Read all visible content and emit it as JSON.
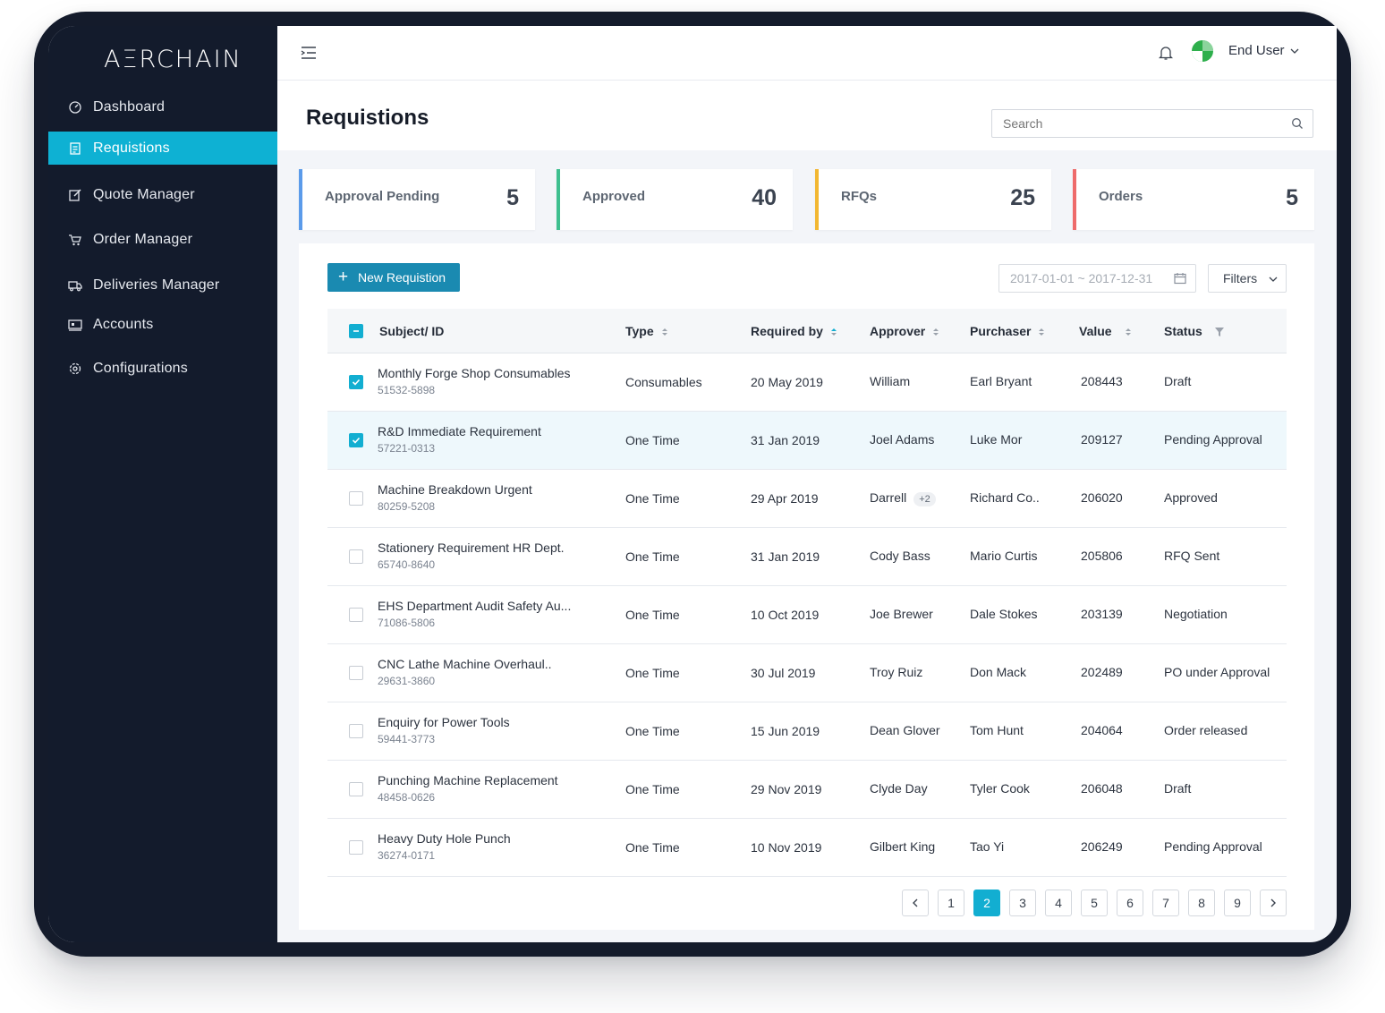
{
  "app": {
    "logo": "AΞRCHAIN"
  },
  "sidebar": {
    "items": [
      {
        "label": "Dashboard",
        "icon": "gauge-icon"
      },
      {
        "label": "Requistions",
        "icon": "document-icon",
        "active": true
      },
      {
        "label": "Quote Manager",
        "icon": "edit-icon"
      },
      {
        "label": "Order Manager",
        "icon": "cart-icon"
      },
      {
        "label": "Deliveries Manager",
        "icon": "truck-icon"
      },
      {
        "label": "Accounts",
        "icon": "monitor-icon"
      },
      {
        "label": "Configurations",
        "icon": "gear-icon"
      }
    ]
  },
  "topbar": {
    "user_name": "End User"
  },
  "page": {
    "title": "Requistions",
    "search_placeholder": "Search"
  },
  "stats": [
    {
      "label": "Approval Pending",
      "value": "5",
      "color": "#5b9bea"
    },
    {
      "label": "Approved",
      "value": "40",
      "color": "#3ebf8f"
    },
    {
      "label": "RFQs",
      "value": "25",
      "color": "#f2b732"
    },
    {
      "label": "Orders",
      "value": "5",
      "color": "#ee6b6b"
    }
  ],
  "toolbar": {
    "new_label": "New Requistion",
    "date_range": "2017-01-01 ~ 2017-12-31",
    "filters_label": "Filters"
  },
  "table": {
    "headers": {
      "subject": "Subject/ ID",
      "type": "Type",
      "required_by": "Required by",
      "approver": "Approver",
      "purchaser": "Purchaser",
      "value": "Value",
      "status": "Status"
    },
    "rows": [
      {
        "subject": "Monthly Forge Shop Consumables",
        "id": "51532-5898",
        "type": "Consumables",
        "required_by": "20 May 2019",
        "approver": "William",
        "approver_extra": "",
        "purchaser": "Earl Bryant",
        "value": "208443",
        "status": "Draft",
        "checked": true
      },
      {
        "subject": "R&D Immediate Requirement",
        "id": "57221-0313",
        "type": "One Time",
        "required_by": "31 Jan 2019",
        "approver": "Joel Adams",
        "approver_extra": "",
        "purchaser": "Luke Mor",
        "value": "209127",
        "status": "Pending Approval",
        "checked": true
      },
      {
        "subject": "Machine Breakdown Urgent",
        "id": "80259-5208",
        "type": "One Time",
        "required_by": "29 Apr 2019",
        "approver": "Darrell",
        "approver_extra": "+2",
        "purchaser": "Richard Co..",
        "value": "206020",
        "status": "Approved",
        "checked": false
      },
      {
        "subject": "Stationery Requirement HR Dept.",
        "id": "65740-8640",
        "type": "One Time",
        "required_by": "31 Jan 2019",
        "approver": "Cody Bass",
        "approver_extra": "",
        "purchaser": "Mario Curtis",
        "value": "205806",
        "status": "RFQ Sent",
        "checked": false
      },
      {
        "subject": "EHS Department Audit Safety Au...",
        "id": "71086-5806",
        "type": "One Time",
        "required_by": "10 Oct 2019",
        "approver": "Joe Brewer",
        "approver_extra": "",
        "purchaser": "Dale Stokes",
        "value": "203139",
        "status": "Negotiation",
        "checked": false
      },
      {
        "subject": "CNC Lathe Machine Overhaul..",
        "id": "29631-3860",
        "type": "One Time",
        "required_by": "30 Jul 2019",
        "approver": "Troy Ruiz",
        "approver_extra": "",
        "purchaser": "Don Mack",
        "value": "202489",
        "status": "PO under Approval",
        "checked": false
      },
      {
        "subject": "Enquiry for Power Tools",
        "id": "59441-3773",
        "type": "One Time",
        "required_by": "15 Jun 2019",
        "approver": "Dean Glover",
        "approver_extra": "",
        "purchaser": "Tom Hunt",
        "value": "204064",
        "status": "Order released",
        "checked": false
      },
      {
        "subject": "Punching Machine Replacement",
        "id": "48458-0626",
        "type": "One Time",
        "required_by": "29 Nov 2019",
        "approver": "Clyde Day",
        "approver_extra": "",
        "purchaser": "Tyler Cook",
        "value": "206048",
        "status": "Draft",
        "checked": false
      },
      {
        "subject": "Heavy Duty Hole Punch",
        "id": "36274-0171",
        "type": "One Time",
        "required_by": "10 Nov 2019",
        "approver": "Gilbert King",
        "approver_extra": "",
        "purchaser": "Tao Yi",
        "value": "206249",
        "status": "Pending Approval",
        "checked": false
      }
    ]
  },
  "pagination": {
    "pages": [
      "1",
      "2",
      "3",
      "4",
      "5",
      "6",
      "7",
      "8",
      "9"
    ],
    "current": "2"
  },
  "colors": {
    "accent": "#12aed1",
    "sidebar": "#131b2c",
    "primary_button": "#1a8ab1"
  }
}
